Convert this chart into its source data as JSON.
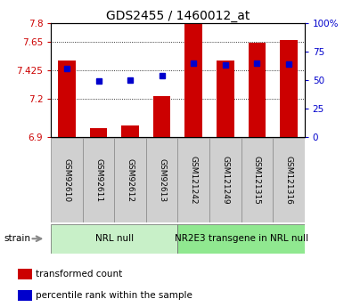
{
  "title": "GDS2455 / 1460012_at",
  "samples": [
    "GSM92610",
    "GSM92611",
    "GSM92612",
    "GSM92613",
    "GSM121242",
    "GSM121249",
    "GSM121315",
    "GSM121316"
  ],
  "bar_values": [
    7.5,
    6.965,
    6.985,
    7.22,
    7.79,
    7.5,
    7.645,
    7.665
  ],
  "percentile_values": [
    60,
    49,
    50,
    54,
    65,
    63,
    65,
    64
  ],
  "bar_base": 6.9,
  "ylim_left": [
    6.9,
    7.8
  ],
  "ylim_right": [
    0,
    100
  ],
  "yticks_left": [
    6.9,
    7.2,
    7.425,
    7.65,
    7.8
  ],
  "yticks_right": [
    0,
    25,
    50,
    75,
    100
  ],
  "ytick_labels_left": [
    "6.9",
    "7.2",
    "7.425",
    "7.65",
    "7.8"
  ],
  "ytick_labels_right": [
    "0",
    "25",
    "50",
    "75",
    "100%"
  ],
  "groups": [
    {
      "label": "NRL null",
      "start": 0,
      "end": 4,
      "color": "#c8f0c8"
    },
    {
      "label": "NR2E3 transgene in NRL null",
      "start": 4,
      "end": 8,
      "color": "#90e890"
    }
  ],
  "bar_color": "#cc0000",
  "marker_color": "#0000cc",
  "bar_width": 0.55,
  "legend_items": [
    {
      "label": "transformed count",
      "color": "#cc0000"
    },
    {
      "label": "percentile rank within the sample",
      "color": "#0000cc"
    }
  ],
  "strain_label": "strain",
  "title_fontsize": 10,
  "tick_fontsize": 7.5,
  "sample_fontsize": 6.5,
  "group_fontsize": 7.5,
  "legend_fontsize": 7.5
}
